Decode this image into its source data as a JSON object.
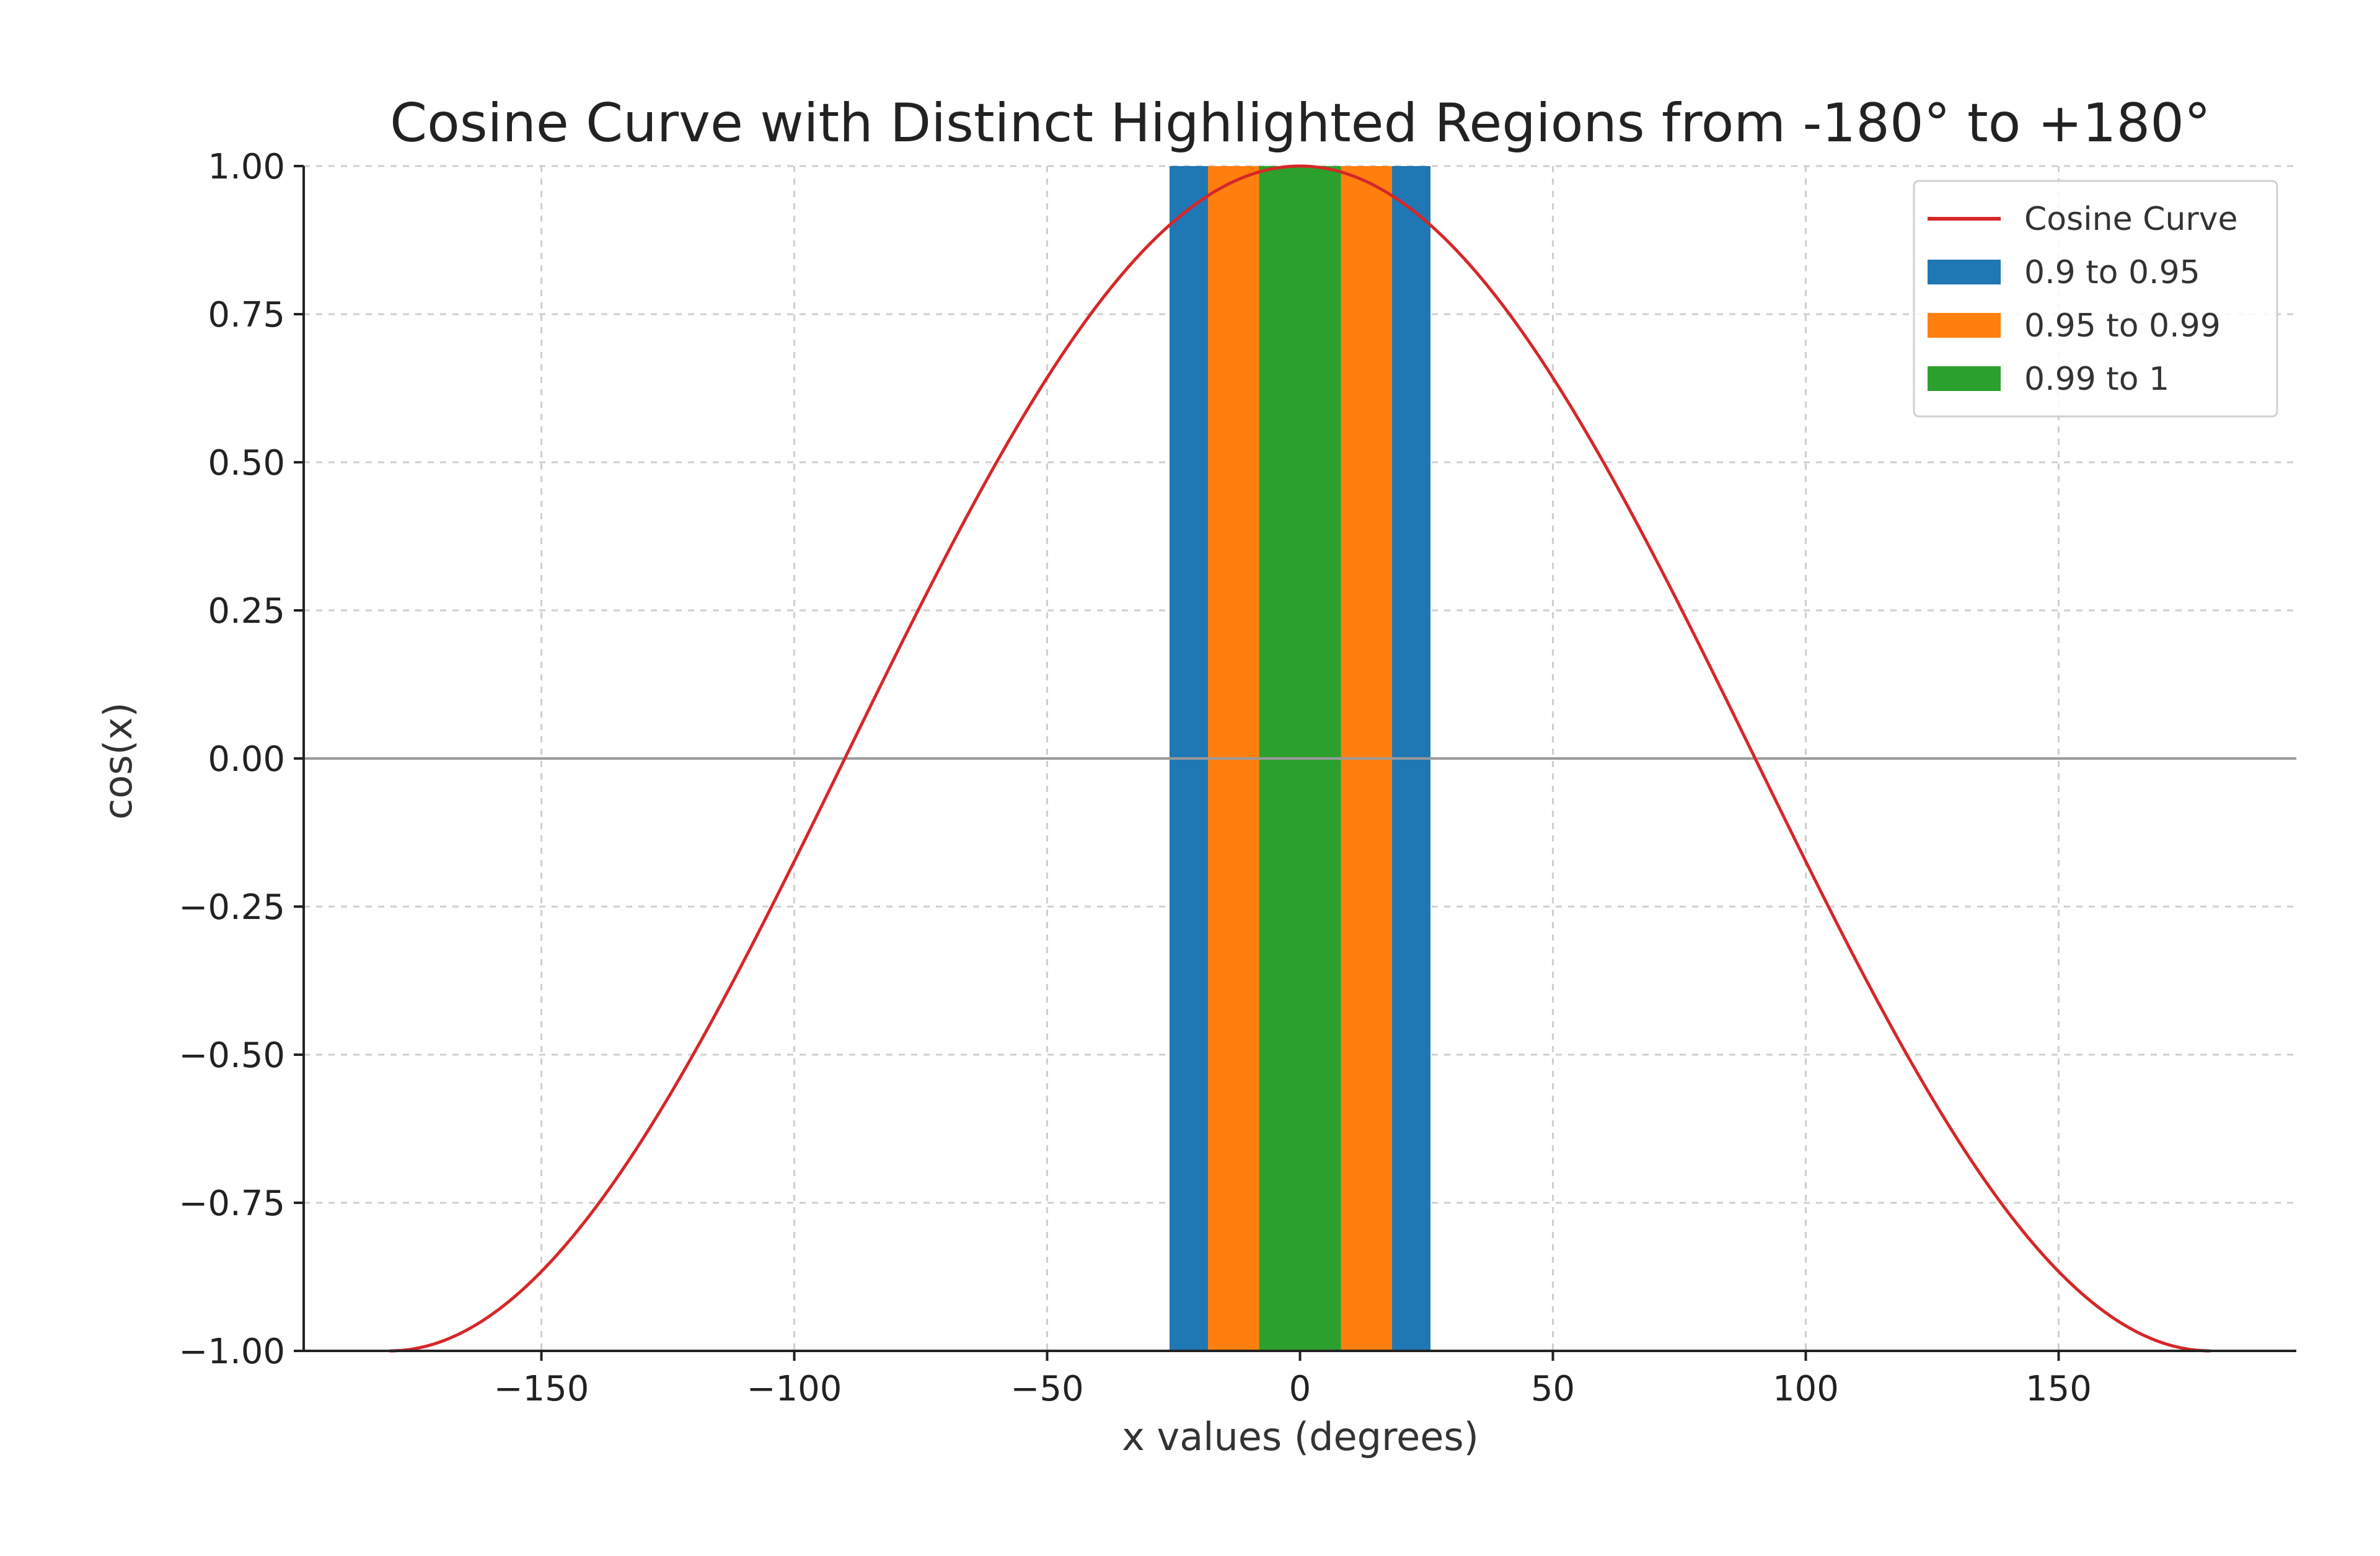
{
  "chart_data": {
    "type": "line",
    "title": "Cosine Curve with Distinct Highlighted Regions from -180° to +180°",
    "xlabel": "x values (degrees)",
    "ylabel": "cos(x)",
    "xlim": [
      -197,
      197
    ],
    "ylim": [
      -1.0,
      1.0
    ],
    "x_ticks": [
      -150,
      -100,
      -50,
      0,
      50,
      100,
      150
    ],
    "x_tick_labels": [
      "−150",
      "−100",
      "−50",
      "0",
      "50",
      "100",
      "150"
    ],
    "y_ticks": [
      1.0,
      0.75,
      0.5,
      0.25,
      0.0,
      -0.25,
      -0.5,
      -0.75,
      -1.0
    ],
    "y_tick_labels": [
      "1.00",
      "0.75",
      "0.50",
      "0.25",
      "0.00",
      "−0.25",
      "−0.50",
      "−0.75",
      "−1.00"
    ],
    "grid": true,
    "legend_position": "top-right",
    "series": [
      {
        "name": "Cosine Curve",
        "function": "cos",
        "x_range": [
          -180,
          180
        ],
        "color": "#d62728"
      }
    ],
    "regions": [
      {
        "name": "0.9 to 0.95",
        "x_ranges": [
          [
            -25.8,
            -18.2
          ],
          [
            18.2,
            25.8
          ]
        ],
        "color": "#1f77b4"
      },
      {
        "name": "0.95 to 0.99",
        "x_ranges": [
          [
            -18.2,
            -8.1
          ],
          [
            8.1,
            18.2
          ]
        ],
        "color": "#ff7f0e"
      },
      {
        "name": "0.99 to 1",
        "x_ranges": [
          [
            -8.1,
            8.1
          ]
        ],
        "color": "#2ca02c"
      }
    ]
  }
}
